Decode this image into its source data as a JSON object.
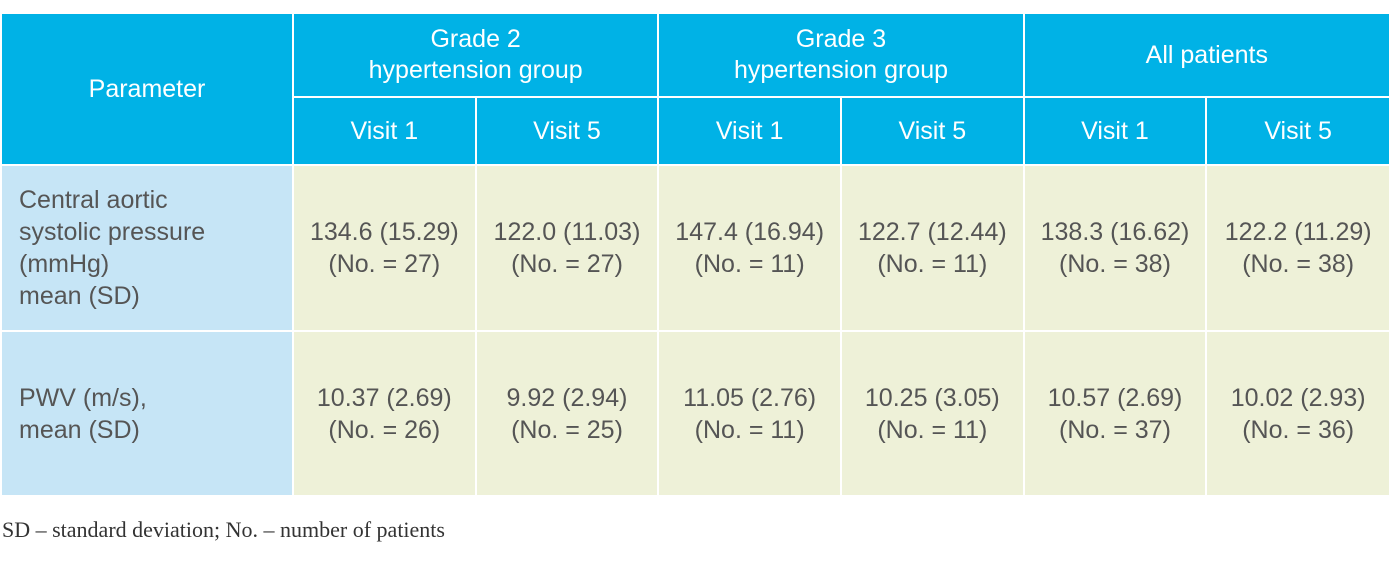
{
  "table": {
    "param_header": "Parameter",
    "groups": [
      {
        "line1": "Grade 2",
        "line2": "hypertension group"
      },
      {
        "line1": "Grade 3",
        "line2": "hypertension group"
      },
      {
        "line1": "All patients",
        "line2": ""
      }
    ],
    "visits": [
      "Visit 1",
      "Visit 5",
      "Visit 1",
      "Visit 5",
      "Visit 1",
      "Visit 5"
    ],
    "rows": [
      {
        "label": [
          "Central aortic",
          "systolic pressure",
          "(mmHg)",
          "mean (SD)"
        ],
        "cells": [
          {
            "value": "134.6 (15.29)",
            "n": "(No. = 27)"
          },
          {
            "value": "122.0 (11.03)",
            "n": "(No. = 27)"
          },
          {
            "value": "147.4 (16.94)",
            "n": "(No. = 11)"
          },
          {
            "value": "122.7 (12.44)",
            "n": "(No. = 11)"
          },
          {
            "value": "138.3 (16.62)",
            "n": "(No. = 38)"
          },
          {
            "value": "122.2 (11.29)",
            "n": "(No. = 38)"
          }
        ]
      },
      {
        "label": [
          "PWV (m/s),",
          "mean (SD)"
        ],
        "cells": [
          {
            "value": "10.37 (2.69)",
            "n": "(No. = 26)"
          },
          {
            "value": "9.92 (2.94)",
            "n": "(No. = 25)"
          },
          {
            "value": "11.05 (2.76)",
            "n": "(No. = 11)"
          },
          {
            "value": "10.25 (3.05)",
            "n": "(No. = 11)"
          },
          {
            "value": "10.57 (2.69)",
            "n": "(No. = 37)"
          },
          {
            "value": "10.02 (2.93)",
            "n": "(No. = 36)"
          }
        ]
      }
    ]
  },
  "footnote": "SD – standard deviation; No. – number of patients",
  "colors": {
    "header_bg": "#00b2e6",
    "param_bg": "#c6e5f6",
    "value_bg": "#eef1d8",
    "body_text": "#555555"
  }
}
